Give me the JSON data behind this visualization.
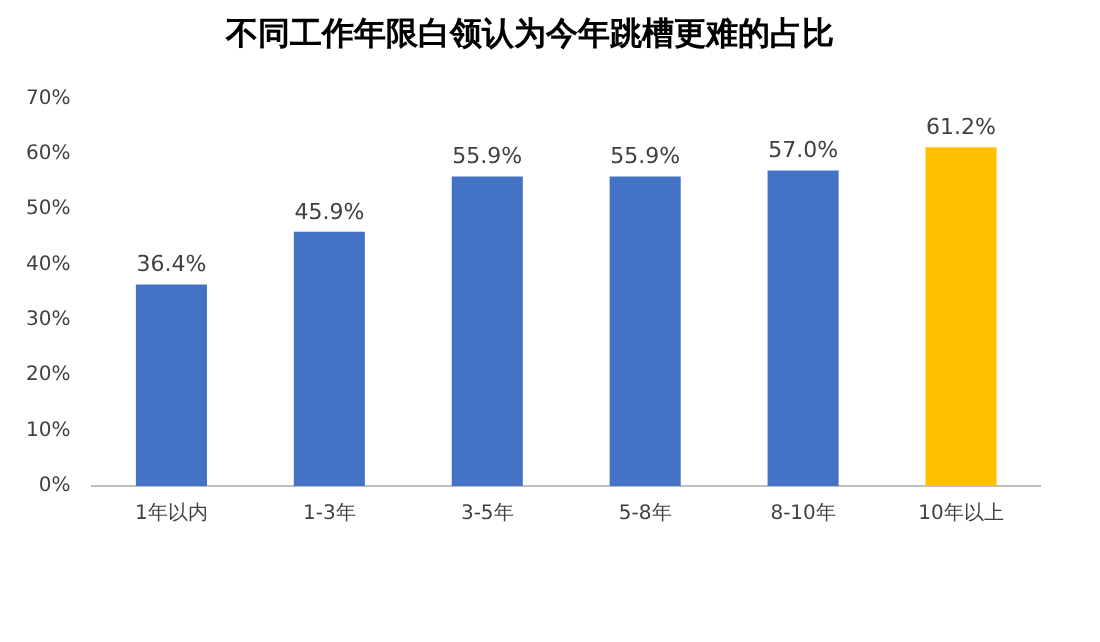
{
  "chart_data": {
    "type": "bar",
    "title": "不同工作年限白领认为今年跳槽更难的占比",
    "categories": [
      "1年以内",
      "1-3年",
      "3-5年",
      "5-8年",
      "8-10年",
      "10年以上"
    ],
    "values": [
      36.4,
      45.9,
      55.9,
      55.9,
      57.0,
      61.2
    ],
    "colors": [
      "#4472c4",
      "#4472c4",
      "#4472c4",
      "#4472c4",
      "#4472c4",
      "#ffc000"
    ],
    "value_labels": [
      "36.4%",
      "45.9%",
      "55.9%",
      "55.9%",
      "57.0%",
      "61.2%"
    ],
    "ylim": [
      0,
      70
    ],
    "yticks": [
      {
        "value": 0,
        "label": "0%"
      },
      {
        "value": 10,
        "label": "10%"
      },
      {
        "value": 20,
        "label": "20%"
      },
      {
        "value": 30,
        "label": "30%"
      },
      {
        "value": 40,
        "label": "40%"
      },
      {
        "value": 50,
        "label": "50%"
      },
      {
        "value": 60,
        "label": "60%"
      },
      {
        "value": 70,
        "label": "70%"
      }
    ],
    "grid": false,
    "legend": false
  }
}
